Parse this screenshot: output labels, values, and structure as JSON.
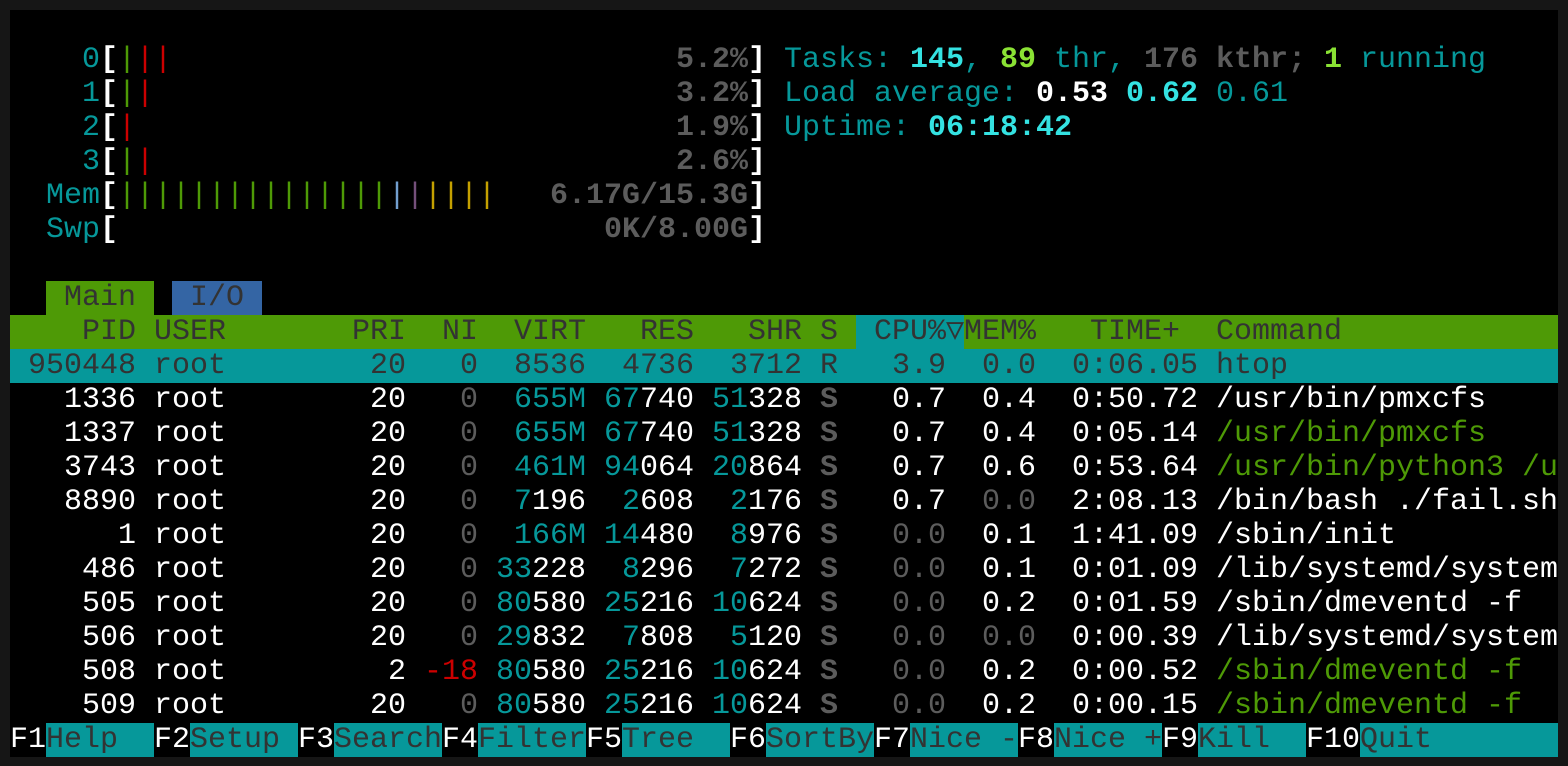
{
  "colors": {
    "cyan": "#06989a",
    "bright_cyan": "#34e2e2",
    "green": "#4e9a06",
    "bright_green": "#8ae234",
    "red": "#cc0000",
    "gray": "#5c5c5c",
    "white": "#ffffff",
    "dark_text": "#333333",
    "blue_tab": "#3465a4",
    "mem_blue": "#729fcf",
    "mem_purple": "#75507b",
    "mem_yellow": "#c4a000"
  },
  "meters": [
    {
      "label": "0",
      "value": "5.2%",
      "segments": [
        "#4e9a06",
        "#cc0000",
        "#cc0000"
      ]
    },
    {
      "label": "1",
      "value": "3.2%",
      "segments": [
        "#4e9a06",
        "#cc0000"
      ]
    },
    {
      "label": "2",
      "value": "1.9%",
      "segments": [
        "#cc0000"
      ]
    },
    {
      "label": "3",
      "value": "2.6%",
      "segments": [
        "#4e9a06",
        "#cc0000"
      ]
    },
    {
      "label": "Mem",
      "value": "6.17G/15.3G",
      "segments": [
        "#4e9a06",
        "#4e9a06",
        "#4e9a06",
        "#4e9a06",
        "#4e9a06",
        "#4e9a06",
        "#4e9a06",
        "#4e9a06",
        "#4e9a06",
        "#4e9a06",
        "#4e9a06",
        "#4e9a06",
        "#4e9a06",
        "#4e9a06",
        "#4e9a06",
        "#729fcf",
        "#75507b",
        "#c4a000",
        "#c4a000",
        "#c4a000",
        "#c4a000"
      ]
    },
    {
      "label": "Swp",
      "value": "0K/8.00G",
      "segments": []
    }
  ],
  "summary": [
    [
      {
        "text": "Tasks: ",
        "color": "#06989a"
      },
      {
        "text": "145",
        "color": "#34e2e2",
        "bold": true
      },
      {
        "text": ", ",
        "color": "#06989a"
      },
      {
        "text": "89",
        "color": "#8ae234",
        "bold": true
      },
      {
        "text": " thr, ",
        "color": "#06989a"
      },
      {
        "text": "176 kthr; ",
        "color": "#5c5c5c",
        "bold": true
      },
      {
        "text": "1",
        "color": "#8ae234",
        "bold": true
      },
      {
        "text": " running",
        "color": "#06989a"
      }
    ],
    [
      {
        "text": "Load average: ",
        "color": "#06989a"
      },
      {
        "text": "0.53 ",
        "color": "#ffffff",
        "bold": true
      },
      {
        "text": "0.62 ",
        "color": "#34e2e2",
        "bold": true
      },
      {
        "text": "0.61",
        "color": "#06989a"
      }
    ],
    [
      {
        "text": "Uptime: ",
        "color": "#06989a"
      },
      {
        "text": "06:18:42",
        "color": "#34e2e2",
        "bold": true
      }
    ]
  ],
  "tabs": [
    {
      "label": "Main",
      "active": true
    },
    {
      "label": "I/O",
      "active": false
    }
  ],
  "columns": {
    "pid": "PID",
    "user": "USER",
    "pri": "PRI",
    "ni": "NI",
    "virt": "VIRT",
    "res": "RES",
    "shr": "SHR",
    "s": "S",
    "cpu": "CPU%",
    "sort_indicator": "▽",
    "mem": "MEM%",
    "time": "TIME+",
    "command": "Command"
  },
  "processes": [
    {
      "pid": "950448",
      "user": "root",
      "pri": "20",
      "ni": "0",
      "virt": "8536",
      "res": "4736",
      "shr": "3712",
      "s": "R",
      "cpu": "3.9",
      "mem": "0.0",
      "time": "0:06.05",
      "command": "htop",
      "selected": true
    },
    {
      "pid": "1336",
      "user": "root",
      "pri": "20",
      "ni": "0",
      "virt": "655M",
      "res": "67740",
      "shr": "51328",
      "s": "S",
      "cpu": "0.7",
      "mem": "0.4",
      "time": "0:50.72",
      "command": "/usr/bin/pmxcfs",
      "command_color": "#ffffff"
    },
    {
      "pid": "1337",
      "user": "root",
      "pri": "20",
      "ni": "0",
      "virt": "655M",
      "res": "67740",
      "shr": "51328",
      "s": "S",
      "cpu": "0.7",
      "mem": "0.4",
      "time": "0:05.14",
      "command": "/usr/bin/pmxcfs",
      "command_color": "#4e9a06"
    },
    {
      "pid": "3743",
      "user": "root",
      "pri": "20",
      "ni": "0",
      "virt": "461M",
      "res": "94064",
      "shr": "20864",
      "s": "S",
      "cpu": "0.7",
      "mem": "0.6",
      "time": "0:53.64",
      "command": "/usr/bin/python3 /u",
      "command_color": "#4e9a06"
    },
    {
      "pid": "8890",
      "user": "root",
      "pri": "20",
      "ni": "0",
      "virt": "7196",
      "res": "2608",
      "shr": "2176",
      "s": "S",
      "cpu": "0.7",
      "mem": "0.0",
      "time": "2:08.13",
      "command": "/bin/bash ./fail.sh",
      "command_color": "#ffffff"
    },
    {
      "pid": "1",
      "user": "root",
      "pri": "20",
      "ni": "0",
      "virt": "166M",
      "res": "14480",
      "shr": "8976",
      "s": "S",
      "cpu": "0.0",
      "mem": "0.1",
      "time": "1:41.09",
      "command": "/sbin/init",
      "command_color": "#ffffff"
    },
    {
      "pid": "486",
      "user": "root",
      "pri": "20",
      "ni": "0",
      "virt": "33228",
      "res": "8296",
      "shr": "7272",
      "s": "S",
      "cpu": "0.0",
      "mem": "0.1",
      "time": "0:01.09",
      "command": "/lib/systemd/system",
      "command_color": "#ffffff"
    },
    {
      "pid": "505",
      "user": "root",
      "pri": "20",
      "ni": "0",
      "virt": "80580",
      "res": "25216",
      "shr": "10624",
      "s": "S",
      "cpu": "0.0",
      "mem": "0.2",
      "time": "0:01.59",
      "command": "/sbin/dmeventd -f",
      "command_color": "#ffffff"
    },
    {
      "pid": "506",
      "user": "root",
      "pri": "20",
      "ni": "0",
      "virt": "29832",
      "res": "7808",
      "shr": "5120",
      "s": "S",
      "cpu": "0.0",
      "mem": "0.0",
      "time": "0:00.39",
      "command": "/lib/systemd/system",
      "command_color": "#ffffff"
    },
    {
      "pid": "508",
      "user": "root",
      "pri": "2",
      "ni": "-18",
      "virt": "80580",
      "res": "25216",
      "shr": "10624",
      "s": "S",
      "cpu": "0.0",
      "mem": "0.2",
      "time": "0:00.52",
      "command": "/sbin/dmeventd -f",
      "command_color": "#4e9a06"
    },
    {
      "pid": "509",
      "user": "root",
      "pri": "20",
      "ni": "0",
      "virt": "80580",
      "res": "25216",
      "shr": "10624",
      "s": "S",
      "cpu": "0.0",
      "mem": "0.2",
      "time": "0:00.15",
      "command": "/sbin/dmeventd -f",
      "command_color": "#4e9a06"
    }
  ],
  "function_keys": [
    {
      "key": "F1",
      "label": "Help"
    },
    {
      "key": "F2",
      "label": "Setup"
    },
    {
      "key": "F3",
      "label": "Search"
    },
    {
      "key": "F4",
      "label": "Filter"
    },
    {
      "key": "F5",
      "label": "Tree"
    },
    {
      "key": "F6",
      "label": "SortBy"
    },
    {
      "key": "F7",
      "label": "Nice -"
    },
    {
      "key": "F8",
      "label": "Nice +"
    },
    {
      "key": "F9",
      "label": "Kill"
    },
    {
      "key": "F10",
      "label": "Quit"
    }
  ]
}
